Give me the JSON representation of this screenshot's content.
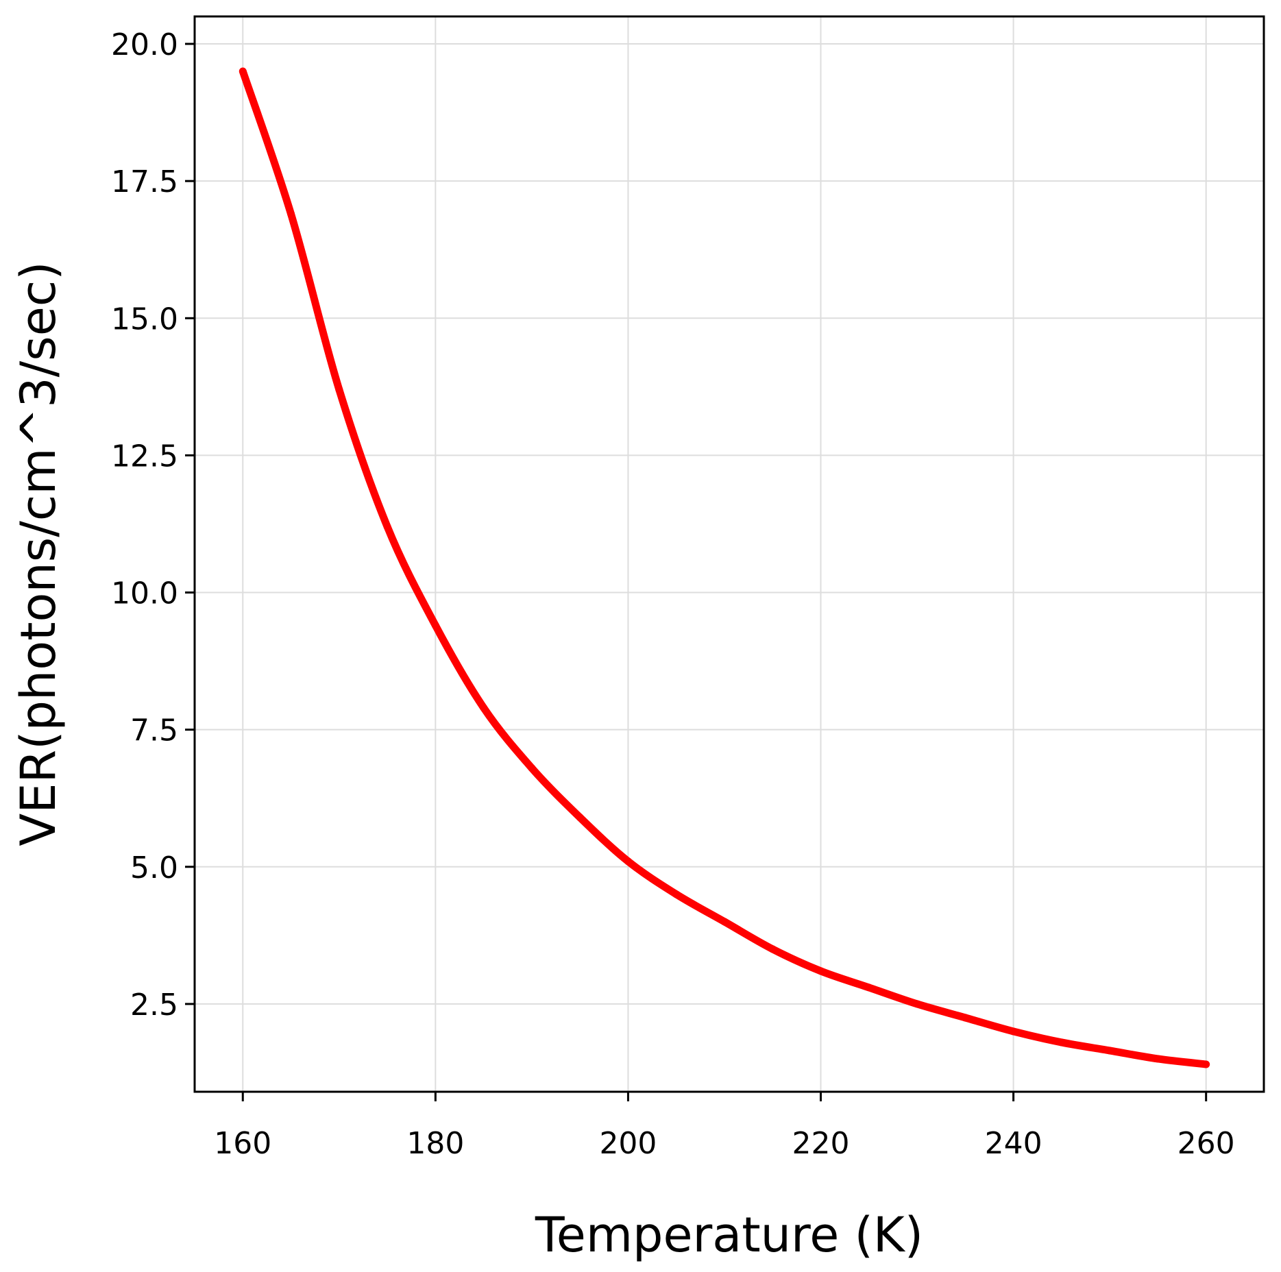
{
  "chart_data": {
    "type": "line",
    "title": "",
    "xlabel": "Temperature (K)",
    "ylabel": "VER(photons/cm^3/sec)",
    "xlim": [
      155,
      266
    ],
    "ylim": [
      0.9,
      20.5
    ],
    "x_ticks": [
      160,
      180,
      200,
      220,
      240,
      260
    ],
    "x_tick_labels": [
      "160",
      "180",
      "200",
      "220",
      "240",
      "260"
    ],
    "y_ticks": [
      2.5,
      5.0,
      7.5,
      10.0,
      12.5,
      15.0,
      17.5,
      20.0
    ],
    "y_tick_labels": [
      "2.5",
      "5.0",
      "7.5",
      "10.0",
      "12.5",
      "15.0",
      "17.5",
      "20.0"
    ],
    "grid": true,
    "legend": "none",
    "series": [
      {
        "color": "#ff0000",
        "x": [
          160,
          165,
          170,
          175,
          180,
          185,
          190,
          195,
          200,
          205,
          210,
          215,
          220,
          225,
          230,
          235,
          240,
          245,
          250,
          255,
          260
        ],
        "y": [
          19.5,
          16.9,
          13.7,
          11.2,
          9.4,
          7.9,
          6.8,
          5.9,
          5.1,
          4.5,
          4.0,
          3.5,
          3.1,
          2.8,
          2.5,
          2.25,
          2.0,
          1.8,
          1.65,
          1.5,
          1.4
        ]
      }
    ]
  }
}
